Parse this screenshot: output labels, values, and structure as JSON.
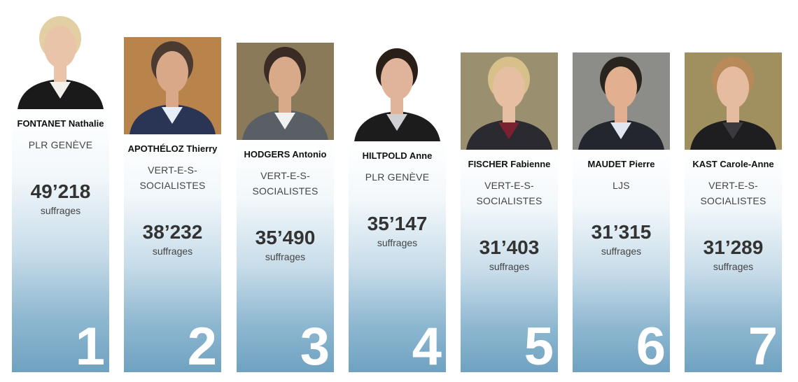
{
  "chart_data": {
    "type": "bar",
    "title": "",
    "unit_label": "suffrages",
    "candidates": [
      {
        "rank": "1",
        "name": "FONTANET Nathalie",
        "party": [
          "PLR GENÈVE"
        ],
        "votes": 49218,
        "votes_text": "49’218",
        "label": "suffrages",
        "photo_bg": "#ffffff",
        "jacket": "#1a1a1a",
        "hair": "#e2cfa3",
        "skin": "#e9c4a8",
        "shirt": "#f2f0ea"
      },
      {
        "rank": "2",
        "name": "APOTHÉLOZ Thierry",
        "party": [
          "VERT-E-S-",
          "SOCIALISTES"
        ],
        "votes": 38232,
        "votes_text": "38’232",
        "label": "suffrages",
        "photo_bg": "#b8844c",
        "jacket": "#2a3555",
        "hair": "#4a3a30",
        "skin": "#d9a888",
        "shirt": "#e8eef5"
      },
      {
        "rank": "3",
        "name": "HODGERS Antonio",
        "party": [
          "VERT-E-S-",
          "SOCIALISTES"
        ],
        "votes": 35490,
        "votes_text": "35’490",
        "label": "suffrages",
        "photo_bg": "#8a7a5a",
        "jacket": "#5a5f66",
        "hair": "#3a2c24",
        "skin": "#d8aa8a",
        "shirt": "#f0f0f0"
      },
      {
        "rank": "4",
        "name": "HILTPOLD Anne",
        "party": [
          "PLR GENÈVE"
        ],
        "votes": 35147,
        "votes_text": "35’147",
        "label": "suffrages",
        "photo_bg": "#ffffff",
        "jacket": "#1c1c1c",
        "hair": "#2a1e18",
        "skin": "#e0b49a",
        "shirt": "#d0d0d4"
      },
      {
        "rank": "5",
        "name": "FISCHER Fabienne",
        "party": [
          "VERT-E-S-",
          "SOCIALISTES"
        ],
        "votes": 31403,
        "votes_text": "31’403",
        "label": "suffrages",
        "photo_bg": "#9a9070",
        "jacket": "#2a2a30",
        "hair": "#d8c08a",
        "skin": "#e6bea2",
        "shirt": "#7a2030"
      },
      {
        "rank": "6",
        "name": "MAUDET Pierre",
        "party": [
          "LJS"
        ],
        "votes": 31315,
        "votes_text": "31’315",
        "label": "suffrages",
        "photo_bg": "#8c8c88",
        "jacket": "#23262c",
        "hair": "#2a241f",
        "skin": "#e2b090",
        "shirt": "#dfe6ef"
      },
      {
        "rank": "7",
        "name": "KAST Carole-Anne",
        "party": [
          "VERT-E-S-",
          "SOCIALISTES"
        ],
        "votes": 31289,
        "votes_text": "31’289",
        "label": "suffrages",
        "photo_bg": "#a09060",
        "jacket": "#1e1e20",
        "hair": "#b88a5a",
        "skin": "#e6bca0",
        "shirt": "#3a3a3e"
      }
    ]
  }
}
